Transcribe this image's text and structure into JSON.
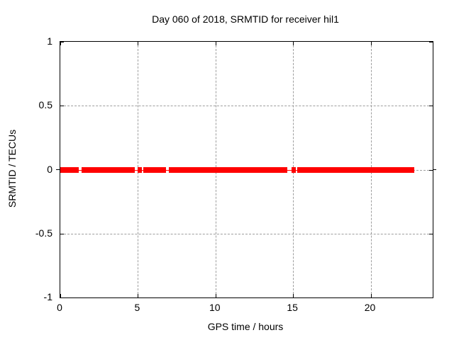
{
  "chart": {
    "title": "Day 060 of 2018, SRMTID for receiver hil1",
    "xlabel": "GPS time / hours",
    "ylabel": "SRMTID / TECUs"
  },
  "chart_data": {
    "type": "line",
    "title": "Day 060 of 2018, SRMTID for receiver hil1",
    "xlabel": "GPS time / hours",
    "ylabel": "SRMTID / TECUs",
    "xlim": [
      0,
      24
    ],
    "ylim": [
      -1,
      1
    ],
    "xticks": [
      0,
      5,
      10,
      15,
      20
    ],
    "yticks": [
      1,
      0.5,
      0,
      -0.5,
      -1
    ],
    "grid": true,
    "legend_position": "none",
    "colors": {
      "data": "#ff0000",
      "grid": "#9e9e9e",
      "axis": "#000000",
      "background": "#ffffff",
      "text": "#000000"
    },
    "series": [
      {
        "name": "SRMTID",
        "color": "#ff0000",
        "style": "dense line band at constant value",
        "y_value": 0,
        "band_halfwidth_tecus": 0.022,
        "segments_hours": [
          [
            0.0,
            1.17
          ],
          [
            1.36,
            4.81
          ],
          [
            4.98,
            5.26
          ],
          [
            5.36,
            6.81
          ],
          [
            6.98,
            14.63
          ],
          [
            14.9,
            15.18
          ],
          [
            15.27,
            22.8
          ]
        ],
        "gaps_hours": [
          [
            1.17,
            1.36
          ],
          [
            4.81,
            4.98
          ],
          [
            5.26,
            5.36
          ],
          [
            6.81,
            6.98
          ],
          [
            14.63,
            14.9
          ],
          [
            15.18,
            15.27
          ]
        ]
      }
    ]
  }
}
